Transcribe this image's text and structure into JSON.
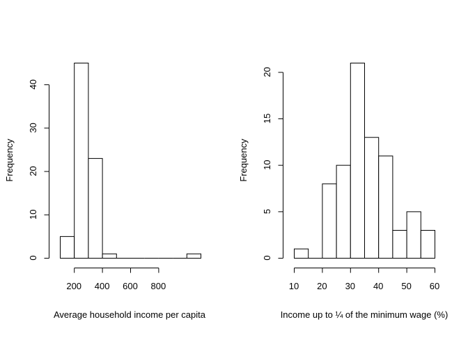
{
  "chart_data": [
    {
      "type": "bar",
      "subtype": "histogram",
      "xlabel": "Average household income per capita",
      "ylabel": "Frequency",
      "bins": [
        {
          "start": 100,
          "end": 200,
          "count": 5
        },
        {
          "start": 200,
          "end": 300,
          "count": 45
        },
        {
          "start": 300,
          "end": 400,
          "count": 23
        },
        {
          "start": 400,
          "end": 500,
          "count": 1
        },
        {
          "start": 500,
          "end": 600,
          "count": 0
        },
        {
          "start": 600,
          "end": 700,
          "count": 0
        },
        {
          "start": 700,
          "end": 800,
          "count": 0
        },
        {
          "start": 800,
          "end": 900,
          "count": 0
        },
        {
          "start": 900,
          "end": 1000,
          "count": 0
        },
        {
          "start": 1000,
          "end": 1100,
          "count": 1
        }
      ],
      "xticks": [
        200,
        400,
        600,
        800
      ],
      "xtick_labels": [
        "200",
        "400",
        "600",
        "800"
      ],
      "yticks": [
        0,
        10,
        20,
        30,
        40
      ],
      "ytick_labels": [
        "0",
        "10",
        "20",
        "30",
        "40"
      ],
      "xlim": [
        100,
        1100
      ],
      "ylim": [
        0,
        45
      ],
      "grid": false
    },
    {
      "type": "bar",
      "subtype": "histogram",
      "xlabel": "Income up to ¼ of the minimum wage (%)",
      "ylabel": "Frequency",
      "bins": [
        {
          "start": 10,
          "end": 15,
          "count": 1
        },
        {
          "start": 15,
          "end": 20,
          "count": 0
        },
        {
          "start": 20,
          "end": 25,
          "count": 8
        },
        {
          "start": 25,
          "end": 30,
          "count": 10
        },
        {
          "start": 30,
          "end": 35,
          "count": 21
        },
        {
          "start": 35,
          "end": 40,
          "count": 13
        },
        {
          "start": 40,
          "end": 45,
          "count": 11
        },
        {
          "start": 45,
          "end": 50,
          "count": 3
        },
        {
          "start": 50,
          "end": 55,
          "count": 5
        },
        {
          "start": 55,
          "end": 60,
          "count": 3
        }
      ],
      "xticks": [
        10,
        20,
        30,
        40,
        50,
        60
      ],
      "xtick_labels": [
        "10",
        "20",
        "30",
        "40",
        "50",
        "60"
      ],
      "yticks": [
        0,
        5,
        10,
        15,
        20
      ],
      "ytick_labels": [
        "0",
        "5",
        "10",
        "15",
        "20"
      ],
      "xlim": [
        10,
        60
      ],
      "ylim": [
        0,
        21
      ],
      "grid": false
    }
  ]
}
